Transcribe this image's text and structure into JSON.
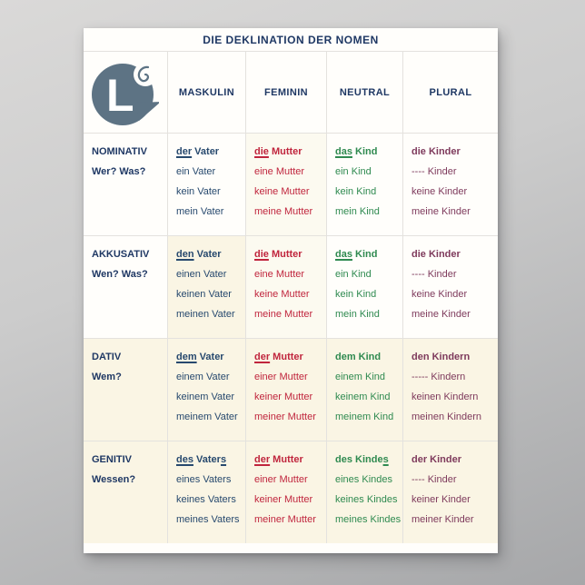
{
  "poster": {
    "title": "DIE DEKLINATION DER NOMEN"
  },
  "logo": {
    "letter": "L",
    "spiral_icon": "spiral-icon"
  },
  "columns": [
    "MASKULIN",
    "FEMININ",
    "NEUTRAL",
    "PLURAL"
  ],
  "colors": {
    "navy": "#1F3864",
    "maskulin": "#27496E",
    "feminin": "#C0253D",
    "neutral": "#2F8A50",
    "plural": "#7E3A5C",
    "grid": "#E4E2DE",
    "cream": "#FAF5E4",
    "creamLight": "#FCFAF0",
    "posterBg": "#FFFEFB",
    "logo": "#5D7384"
  },
  "rows": [
    {
      "case": "NOMINATIV",
      "question": "Wer? Was?",
      "cells": [
        {
          "first": [
            {
              "t": "der",
              "u": true
            },
            {
              "t": " Vater",
              "u": false
            }
          ],
          "lines": [
            "ein Vater",
            "kein Vater",
            "mein Vater"
          ]
        },
        {
          "first": [
            {
              "t": "die",
              "u": true
            },
            {
              "t": " Mutter",
              "u": false
            }
          ],
          "lines": [
            "eine Mutter",
            "keine Mutter",
            "meine Mutter"
          ]
        },
        {
          "first": [
            {
              "t": "das",
              "u": true
            },
            {
              "t": " Kind",
              "u": false
            }
          ],
          "lines": [
            "ein Kind",
            "kein Kind",
            "mein Kind"
          ]
        },
        {
          "first": [
            {
              "t": "die Kinder",
              "u": false
            }
          ],
          "lines": [
            "---- Kinder",
            "keine Kinder",
            "meine Kinder"
          ]
        }
      ]
    },
    {
      "case": "AKKUSATIV",
      "question": "Wen? Was?",
      "cells": [
        {
          "first": [
            {
              "t": "den",
              "u": true
            },
            {
              "t": " Vater",
              "u": false
            }
          ],
          "lines": [
            "einen Vater",
            "keinen Vater",
            "meinen Vater"
          ]
        },
        {
          "first": [
            {
              "t": "die",
              "u": true
            },
            {
              "t": " Mutter",
              "u": false
            }
          ],
          "lines": [
            "eine Mutter",
            "keine Mutter",
            "meine Mutter"
          ]
        },
        {
          "first": [
            {
              "t": "das",
              "u": true
            },
            {
              "t": " Kind",
              "u": false
            }
          ],
          "lines": [
            "ein Kind",
            "kein Kind",
            "mein Kind"
          ]
        },
        {
          "first": [
            {
              "t": "die Kinder",
              "u": false
            }
          ],
          "lines": [
            "---- Kinder",
            "keine Kinder",
            "meine Kinder"
          ]
        }
      ]
    },
    {
      "case": "DATIV",
      "question": "Wem?",
      "cells": [
        {
          "first": [
            {
              "t": "dem",
              "u": true
            },
            {
              "t": " Vater",
              "u": false
            }
          ],
          "lines": [
            "einem Vater",
            "keinem Vater",
            "meinem Vater"
          ]
        },
        {
          "first": [
            {
              "t": "der",
              "u": true
            },
            {
              "t": " Mutter",
              "u": false
            }
          ],
          "lines": [
            "einer Mutter",
            "keiner Mutter",
            "meiner Mutter"
          ]
        },
        {
          "first": [
            {
              "t": "dem Kind",
              "u": false
            }
          ],
          "lines": [
            "einem Kind",
            "keinem Kind",
            "meinem Kind"
          ]
        },
        {
          "first": [
            {
              "t": "den Kindern",
              "u": false
            }
          ],
          "lines": [
            "----- Kindern",
            "keinen Kindern",
            "meinen Kindern"
          ]
        }
      ]
    },
    {
      "case": "GENITIV",
      "question": "Wessen?",
      "cells": [
        {
          "first": [
            {
              "t": "des",
              "u": true
            },
            {
              "t": " Vater",
              "u": false
            },
            {
              "t": "s",
              "u": true
            }
          ],
          "lines": [
            "eines Vaters",
            "keines Vaters",
            "meines Vaters"
          ]
        },
        {
          "first": [
            {
              "t": "der",
              "u": true
            },
            {
              "t": " Mutter",
              "u": false
            }
          ],
          "lines": [
            "einer Mutter",
            "keiner Mutter",
            "meiner Mutter"
          ]
        },
        {
          "first": [
            {
              "t": "des Kinde",
              "u": false
            },
            {
              "t": "s",
              "u": true
            }
          ],
          "lines": [
            "eines Kindes",
            "keines Kindes",
            "meines Kindes"
          ]
        },
        {
          "first": [
            {
              "t": "der Kinder",
              "u": false
            }
          ],
          "lines": [
            "---- Kinder",
            "keiner Kinder",
            "meiner Kinder"
          ]
        }
      ]
    }
  ]
}
